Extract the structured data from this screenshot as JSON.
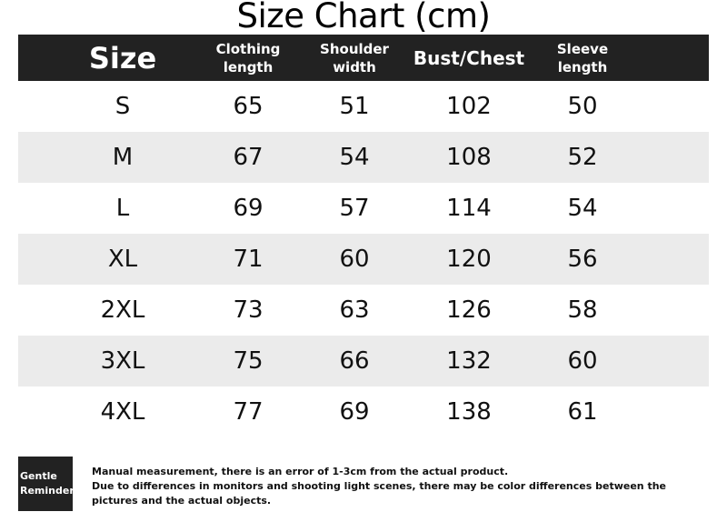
{
  "title": "Size Chart (cm)",
  "table": {
    "headers": [
      {
        "line1": "Size",
        "line2": ""
      },
      {
        "line1": "Clothing",
        "line2": "length"
      },
      {
        "line1": "Shoulder",
        "line2": "width"
      },
      {
        "line1": "Bust/Chest",
        "line2": ""
      },
      {
        "line1": "Sleeve",
        "line2": "length"
      }
    ],
    "rows": [
      [
        "S",
        "65",
        "51",
        "102",
        "50"
      ],
      [
        "M",
        "67",
        "54",
        "108",
        "52"
      ],
      [
        "L",
        "69",
        "57",
        "114",
        "54"
      ],
      [
        "XL",
        "71",
        "60",
        "120",
        "56"
      ],
      [
        "2XL",
        "73",
        "63",
        "126",
        "58"
      ],
      [
        "3XL",
        "75",
        "66",
        "132",
        "60"
      ],
      [
        "4XL",
        "77",
        "69",
        "138",
        "61"
      ]
    ]
  },
  "reminder": {
    "label_line1": "Gentle",
    "label_line2": "Reminder",
    "lines": [
      "Manual measurement, there is an error of 1-3cm from the actual product.",
      "Due to differences in monitors and shooting light scenes, there may be color differences between the",
      "pictures and the actual objects."
    ]
  },
  "colors": {
    "header_bg": "#222222",
    "alt_row_bg": "#ebebeb",
    "text": "#111111"
  }
}
